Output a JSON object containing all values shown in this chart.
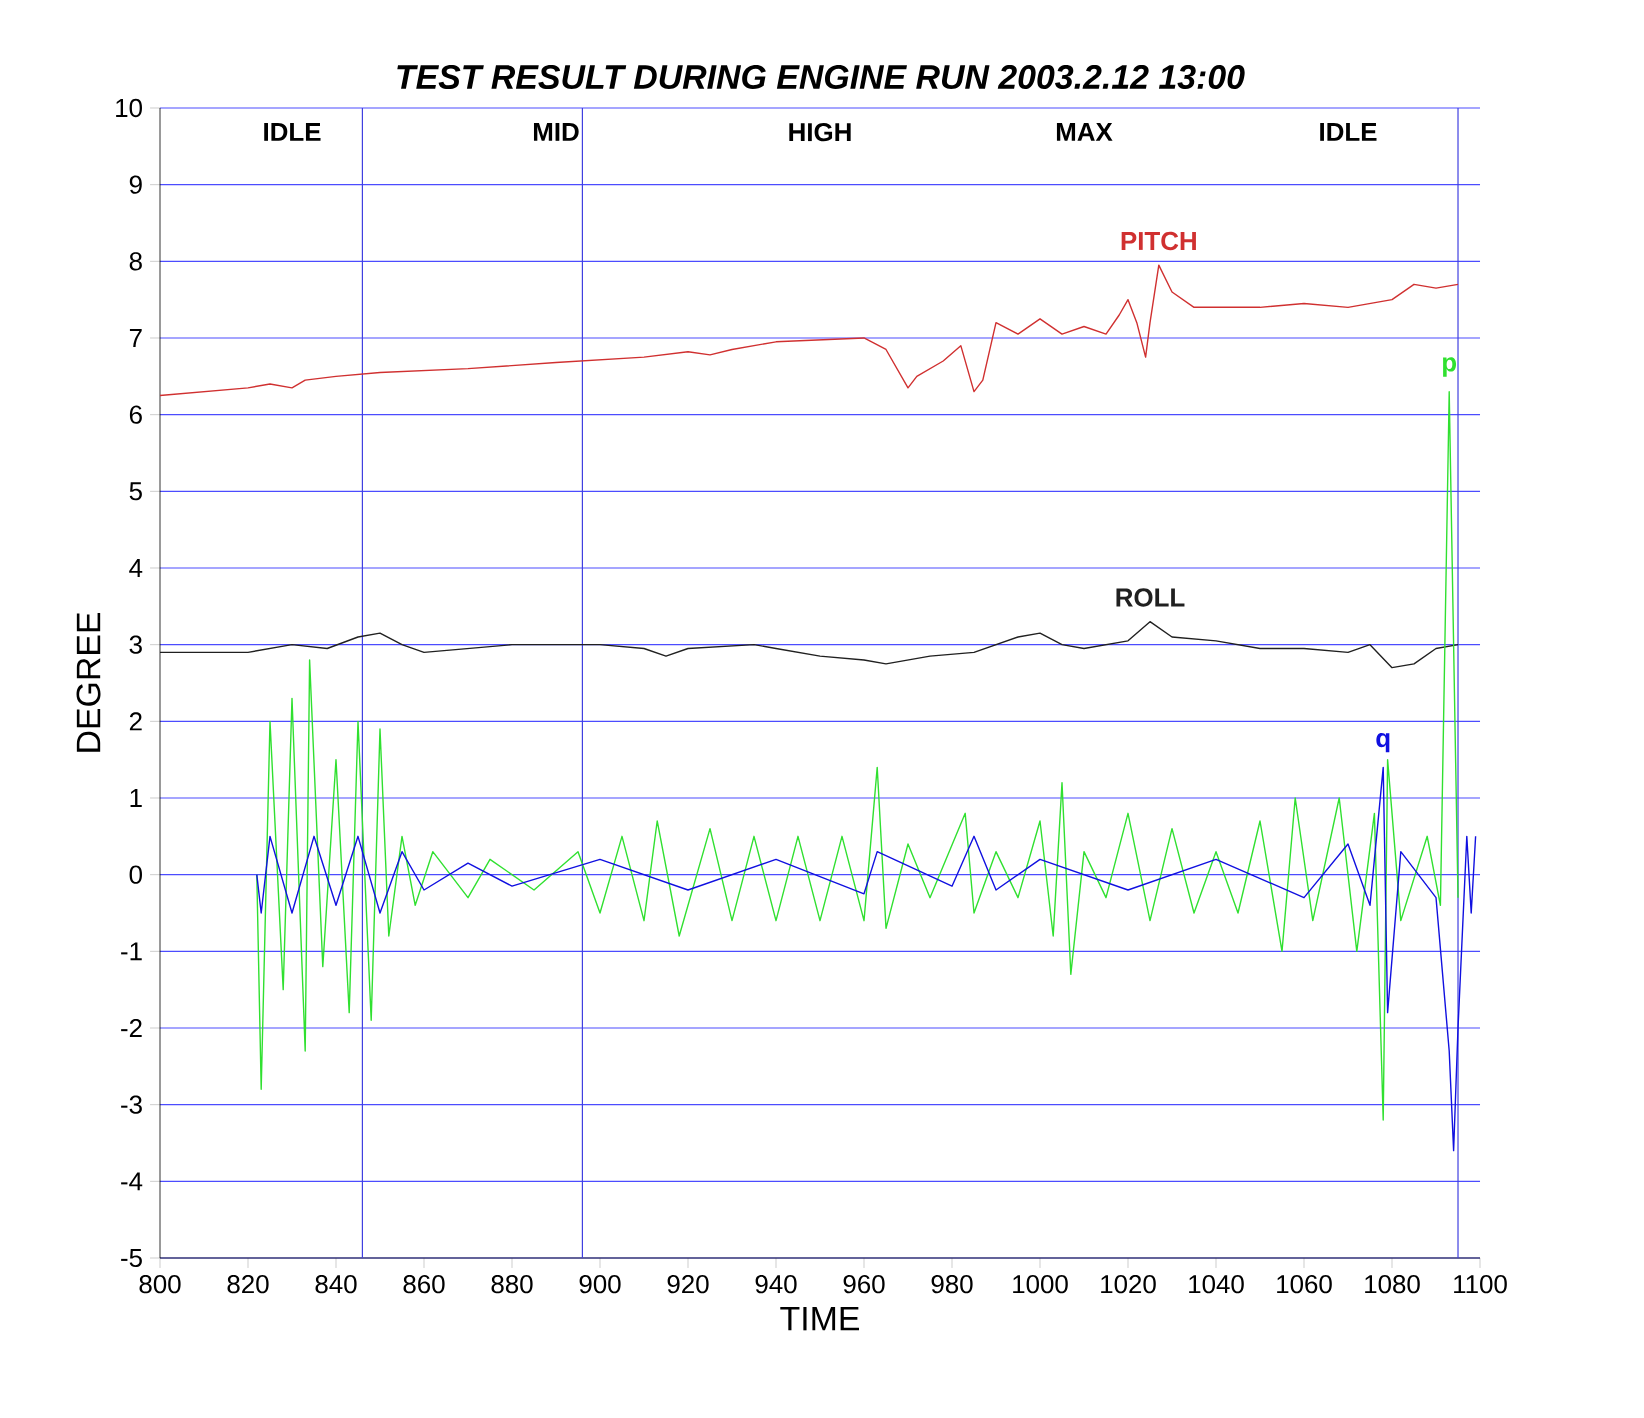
{
  "chart_data": {
    "type": "line",
    "title": "TEST RESULT DURING ENGINE RUN 2003.2.12 13:00",
    "xlabel": "TIME",
    "ylabel": "DEGREE",
    "xlim": [
      800,
      1100
    ],
    "xticks": [
      800,
      820,
      840,
      860,
      880,
      900,
      920,
      940,
      960,
      980,
      1000,
      1020,
      1040,
      1060,
      1080,
      1100
    ],
    "ylim": [
      -5,
      10
    ],
    "yticks": [
      -5,
      -4,
      -3,
      -2,
      -1,
      0,
      1,
      2,
      3,
      4,
      5,
      6,
      7,
      8,
      9,
      10
    ],
    "grid": "y",
    "legend": false,
    "marker": "none",
    "line_style": "solid",
    "ref_lines": [
      {
        "axis": "x",
        "value": 846,
        "color": "#4040e0"
      },
      {
        "axis": "x",
        "value": 896,
        "color": "#4040e0"
      },
      {
        "axis": "x",
        "value": 1095,
        "color": "#4040e0"
      }
    ],
    "annotations": [
      "IDLE",
      "MID",
      "HIGH",
      "MAX",
      "IDLE"
    ],
    "series": [
      {
        "name": "PITCH",
        "color": "#d03030",
        "x": [
          800,
          820,
          825,
          830,
          833,
          840,
          850,
          870,
          890,
          910,
          920,
          925,
          930,
          940,
          960,
          965,
          970,
          972,
          978,
          982,
          985,
          987,
          990,
          995,
          1000,
          1005,
          1010,
          1015,
          1018,
          1020,
          1022,
          1024,
          1025,
          1027,
          1030,
          1035,
          1050,
          1060,
          1070,
          1080,
          1085,
          1090,
          1095
        ],
        "values": [
          6.25,
          6.35,
          6.4,
          6.35,
          6.45,
          6.5,
          6.55,
          6.6,
          6.68,
          6.75,
          6.82,
          6.78,
          6.85,
          6.95,
          7.0,
          6.85,
          6.35,
          6.5,
          6.7,
          6.9,
          6.3,
          6.45,
          7.2,
          7.05,
          7.25,
          7.05,
          7.15,
          7.05,
          7.3,
          7.5,
          7.2,
          6.75,
          7.2,
          7.95,
          7.6,
          7.4,
          7.4,
          7.45,
          7.4,
          7.5,
          7.7,
          7.65,
          7.7
        ]
      },
      {
        "name": "ROLL",
        "color": "#202020",
        "x": [
          800,
          820,
          825,
          830,
          838,
          845,
          850,
          855,
          860,
          870,
          880,
          900,
          910,
          915,
          920,
          935,
          940,
          950,
          960,
          965,
          975,
          985,
          995,
          1000,
          1005,
          1010,
          1020,
          1025,
          1030,
          1040,
          1050,
          1060,
          1070,
          1075,
          1080,
          1085,
          1090,
          1095
        ],
        "values": [
          2.9,
          2.9,
          2.95,
          3.0,
          2.95,
          3.1,
          3.15,
          3.0,
          2.9,
          2.95,
          3.0,
          3.0,
          2.95,
          2.85,
          2.95,
          3.0,
          2.95,
          2.85,
          2.8,
          2.75,
          2.85,
          2.9,
          3.1,
          3.15,
          3.0,
          2.95,
          3.05,
          3.3,
          3.1,
          3.05,
          2.95,
          2.95,
          2.9,
          3.0,
          2.7,
          2.75,
          2.95,
          3.0
        ]
      },
      {
        "name": "p",
        "color": "#30e030",
        "x": [
          822,
          823,
          825,
          828,
          830,
          833,
          834,
          837,
          840,
          843,
          845,
          848,
          850,
          852,
          855,
          858,
          862,
          870,
          875,
          885,
          895,
          900,
          905,
          910,
          913,
          918,
          925,
          930,
          935,
          940,
          945,
          950,
          955,
          960,
          963,
          965,
          970,
          975,
          983,
          985,
          990,
          995,
          1000,
          1003,
          1005,
          1007,
          1010,
          1015,
          1020,
          1025,
          1030,
          1035,
          1040,
          1045,
          1050,
          1055,
          1058,
          1062,
          1068,
          1072,
          1076,
          1078,
          1079,
          1082,
          1088,
          1091,
          1093,
          1094,
          1095
        ],
        "values": [
          0,
          -2.8,
          2.0,
          -1.5,
          2.3,
          -2.3,
          2.8,
          -1.2,
          1.5,
          -1.8,
          2.0,
          -1.9,
          1.9,
          -0.8,
          0.5,
          -0.4,
          0.3,
          -0.3,
          0.2,
          -0.2,
          0.3,
          -0.5,
          0.5,
          -0.6,
          0.7,
          -0.8,
          0.6,
          -0.6,
          0.5,
          -0.6,
          0.5,
          -0.6,
          0.5,
          -0.6,
          1.4,
          -0.7,
          0.4,
          -0.3,
          0.8,
          -0.5,
          0.3,
          -0.3,
          0.7,
          -0.8,
          1.2,
          -1.3,
          0.3,
          -0.3,
          0.8,
          -0.6,
          0.6,
          -0.5,
          0.3,
          -0.5,
          0.7,
          -1.0,
          1.0,
          -0.6,
          1.0,
          -1.0,
          0.8,
          -3.2,
          1.5,
          -0.6,
          0.5,
          -0.4,
          6.3,
          3.0,
          -0.3
        ]
      },
      {
        "name": "q",
        "color": "#1010e0",
        "x": [
          822,
          823,
          825,
          830,
          835,
          840,
          845,
          850,
          855,
          860,
          870,
          880,
          900,
          920,
          940,
          960,
          963,
          980,
          985,
          990,
          1000,
          1020,
          1040,
          1060,
          1070,
          1075,
          1078,
          1079,
          1082,
          1090,
          1093,
          1094,
          1095,
          1097,
          1098,
          1099
        ],
        "values": [
          0,
          -0.5,
          0.5,
          -0.5,
          0.5,
          -0.4,
          0.5,
          -0.5,
          0.3,
          -0.2,
          0.15,
          -0.15,
          0.2,
          -0.2,
          0.2,
          -0.25,
          0.3,
          -0.15,
          0.5,
          -0.2,
          0.2,
          -0.2,
          0.2,
          -0.3,
          0.4,
          -0.4,
          1.4,
          -1.8,
          0.3,
          -0.3,
          -2.3,
          -3.6,
          -2.0,
          0.5,
          -0.5,
          0.5
        ]
      }
    ]
  }
}
